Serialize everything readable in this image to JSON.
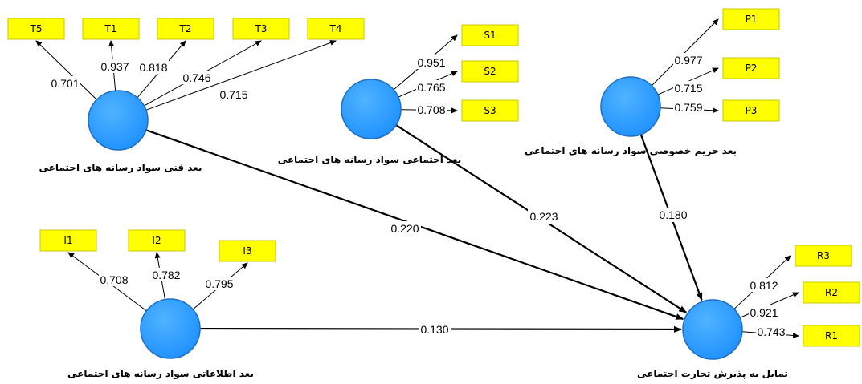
{
  "diagram": {
    "constructs": [
      {
        "id": "T",
        "label": "بعد فنی سواد رسانه های اجتماعی",
        "indicators": [
          "T5",
          "T1",
          "T2",
          "T3",
          "T4"
        ],
        "loadings": [
          "0.701",
          "0.937",
          "0.818",
          "0.746",
          "0.715"
        ]
      },
      {
        "id": "S",
        "label": "بعد اجتماعی سواد رسانه های اجتماعی",
        "indicators": [
          "S1",
          "S2",
          "S3"
        ],
        "loadings": [
          "0.951",
          "0.765",
          "0.708"
        ]
      },
      {
        "id": "P",
        "label": "بعد حریم خصوصی سواد رسانه های اجتماعی",
        "indicators": [
          "P1",
          "P2",
          "P3"
        ],
        "loadings": [
          "0.977",
          "0.715",
          "0.759"
        ]
      },
      {
        "id": "I",
        "label": "بعد اطلاعاتی سواد رسانه های اجتماعی",
        "indicators": [
          "I1",
          "I2",
          "I3"
        ],
        "loadings": [
          "0.708",
          "0.782",
          "0.795"
        ]
      },
      {
        "id": "R",
        "label": "تمایل به پذیرش تجارت اجتماعی",
        "indicators": [
          "R3",
          "R2",
          "R1"
        ],
        "loadings": [
          "0.812",
          "0.921",
          "0.743"
        ]
      }
    ],
    "paths": [
      {
        "from": "T",
        "to": "R",
        "coef": "0.220"
      },
      {
        "from": "S",
        "to": "R",
        "coef": "0.223"
      },
      {
        "from": "P",
        "to": "R",
        "coef": "0.180"
      },
      {
        "from": "I",
        "to": "R",
        "coef": "0.130"
      }
    ],
    "colors": {
      "construct_fill": "#1e90ff",
      "indicator_fill": "#ffff00"
    }
  }
}
